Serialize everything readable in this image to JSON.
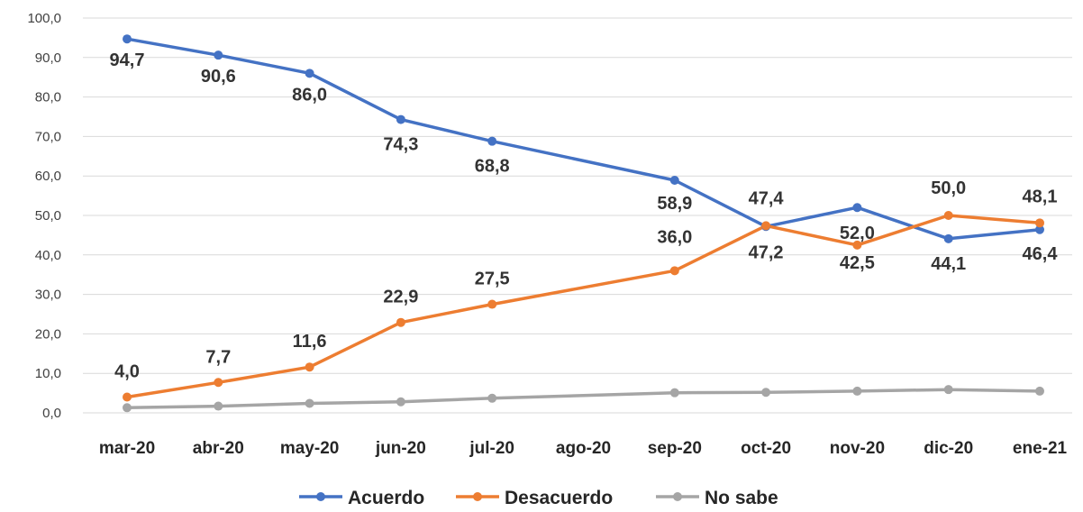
{
  "chart_data": {
    "type": "line",
    "categories": [
      "mar-20",
      "abr-20",
      "may-20",
      "jun-20",
      "jul-20",
      "ago-20",
      "sep-20",
      "oct-20",
      "nov-20",
      "dic-20",
      "ene-21"
    ],
    "ylim": [
      0,
      100
    ],
    "yticks": [
      "0,0",
      "10,0",
      "20,0",
      "30,0",
      "40,0",
      "50,0",
      "60,0",
      "70,0",
      "80,0",
      "90,0",
      "100,0"
    ],
    "grid": true,
    "legend_position": "bottom",
    "series": [
      {
        "name": "Acuerdo",
        "color": "#4472c4",
        "values": [
          94.7,
          90.6,
          86.0,
          74.3,
          68.8,
          null,
          58.9,
          47.2,
          52.0,
          44.1,
          46.4
        ],
        "labels": [
          "94,7",
          "90,6",
          "86,0",
          "74,3",
          "68,8",
          "",
          "58,9",
          "47,2",
          "52,0",
          "44,1",
          "46,4"
        ]
      },
      {
        "name": "Desacuerdo",
        "color": "#ed7d31",
        "values": [
          4.0,
          7.7,
          11.6,
          22.9,
          27.5,
          null,
          36.0,
          47.4,
          42.5,
          50.0,
          48.1
        ],
        "labels": [
          "4,0",
          "7,7",
          "11,6",
          "22,9",
          "27,5",
          "",
          "36,0",
          "47,4",
          "42,5",
          "50,0",
          "48,1"
        ]
      },
      {
        "name": "No sabe",
        "color": "#a5a5a5",
        "values": [
          1.3,
          1.7,
          2.4,
          2.8,
          3.7,
          null,
          5.1,
          5.2,
          5.5,
          5.9,
          5.5
        ],
        "labels": []
      }
    ]
  }
}
